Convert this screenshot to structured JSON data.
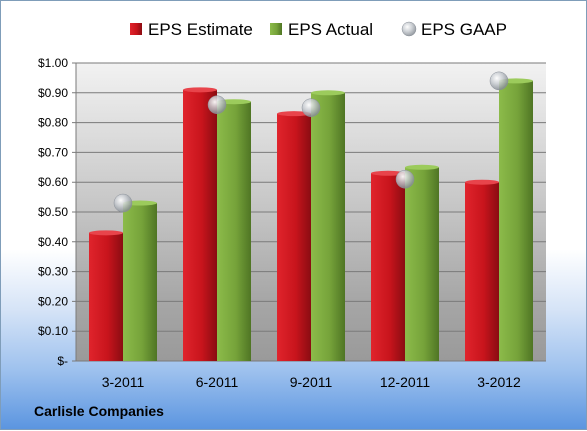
{
  "chart_data": {
    "type": "bar",
    "categories": [
      "3-2011",
      "6-2011",
      "9-2011",
      "12-2011",
      "3-2012"
    ],
    "series": [
      {
        "name": "EPS Estimate",
        "values": [
          0.43,
          0.91,
          0.83,
          0.63,
          0.6
        ],
        "color": "#c0141c"
      },
      {
        "name": "EPS Actual",
        "values": [
          0.53,
          0.87,
          0.9,
          0.65,
          0.94
        ],
        "color": "#76a33a"
      },
      {
        "name": "EPS GAAP",
        "values": [
          0.53,
          0.86,
          0.85,
          0.61,
          0.94
        ],
        "color": "#b8bec6",
        "marker": "sphere"
      }
    ],
    "ylim": [
      0,
      1.0
    ],
    "yticks": [
      0,
      0.1,
      0.2,
      0.3,
      0.4,
      0.5,
      0.6,
      0.7,
      0.8,
      0.9,
      1.0
    ],
    "ytick_labels": [
      "$-",
      "$0.10",
      "$0.20",
      "$0.30",
      "$0.40",
      "$0.50",
      "$0.60",
      "$0.70",
      "$0.80",
      "$0.90",
      "$1.00"
    ],
    "grid": true,
    "legend_position": "top"
  },
  "footer": {
    "company": "Carlisle Companies"
  }
}
